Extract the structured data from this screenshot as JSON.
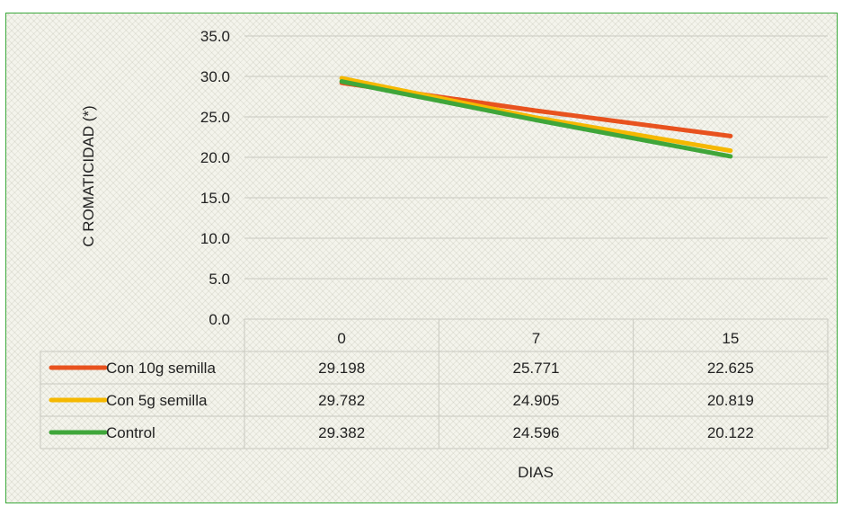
{
  "chart_data": {
    "type": "line",
    "ylabel": "C ROMATICIDAD (*)",
    "xlabel": "DIAS",
    "categories": [
      "0",
      "7",
      "15"
    ],
    "ylim": [
      0,
      35
    ],
    "yticks": [
      "35.0",
      "30.0",
      "25.0",
      "20.0",
      "15.0",
      "10.0",
      "5.0",
      "0.0"
    ],
    "grid": true,
    "legend": "data-table",
    "series": [
      {
        "name": "Con 10g semilla",
        "color": "#e8521e",
        "values": [
          29.198,
          25.771,
          22.625
        ],
        "labels": [
          "29.198",
          "25.771",
          "22.625"
        ]
      },
      {
        "name": "Con 5g semilla",
        "color": "#f5b800",
        "values": [
          29.782,
          24.905,
          20.819
        ],
        "labels": [
          "29.782",
          "24.905",
          "20.819"
        ]
      },
      {
        "name": "Control",
        "color": "#3fa63a",
        "values": [
          29.382,
          24.596,
          20.122
        ],
        "labels": [
          "29.382",
          "24.596",
          "20.122"
        ]
      }
    ]
  }
}
